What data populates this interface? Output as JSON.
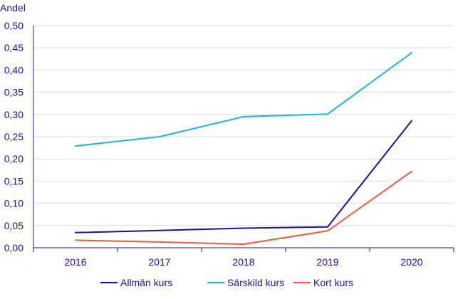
{
  "chart_data": {
    "type": "line",
    "ylabel": "Andel",
    "xlabel": "",
    "x": [
      "2016",
      "2017",
      "2018",
      "2019",
      "2020"
    ],
    "ylim": [
      0,
      0.5
    ],
    "yticks": [
      "0,00",
      "0,05",
      "0,10",
      "0,15",
      "0,20",
      "0,25",
      "0,30",
      "0,35",
      "0,40",
      "0,45",
      "0,50"
    ],
    "grid": "horizontal",
    "legend_position": "bottom",
    "series": [
      {
        "name": "Allmän kurs",
        "color": "#1e0fa0",
        "values": [
          0.034,
          0.039,
          0.044,
          0.047,
          0.286
        ]
      },
      {
        "name": "Särskild kurs",
        "color": "#1fb1e6",
        "values": [
          0.229,
          0.25,
          0.295,
          0.301,
          0.439
        ]
      },
      {
        "name": "Kort kurs",
        "color": "#ee5a3c",
        "values": [
          0.017,
          0.013,
          0.008,
          0.038,
          0.172
        ]
      }
    ],
    "colors": {
      "text": "#1e0fa0",
      "axis": "#1e0fa0",
      "grid": "#d9d9ec"
    }
  }
}
